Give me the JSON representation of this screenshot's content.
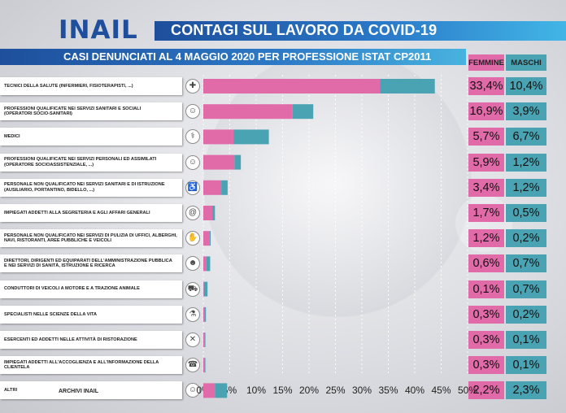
{
  "header": {
    "logo": "INAIL",
    "title": "CONTAGI SUL LAVORO DA COVID-19",
    "subtitle": "CASI DENUNCIATI AL 4 MAGGIO 2020 PER PROFESSIONE ISTAT CP2011",
    "col_female": "FEMMINE",
    "col_male": "MASCHI"
  },
  "footer": "ARCHIVI INAIL",
  "colors": {
    "female": "#e16aa9",
    "male": "#4aa3b2",
    "brand_blue": "#1f4f9c"
  },
  "rows": [
    {
      "label": "TECNICI DELLA SALUTE (INFERMIERI, FISIOTERAPISTI, ...)",
      "female_label": "33,4%",
      "male_label": "10,4%",
      "icon": "nurse-icon",
      "glyph": "✚"
    },
    {
      "label": "PROFESSIONI QUALIFICATE NEI SERVIZI SANITARI E SOCIALI\n(OPERATORI SOCIO-SANITARI)",
      "female_label": "16,9%",
      "male_label": "3,9%",
      "icon": "caregiver-icon",
      "glyph": "☺"
    },
    {
      "label": "MEDICI",
      "female_label": "5,7%",
      "male_label": "6,7%",
      "icon": "doctor-icon",
      "glyph": "⚕"
    },
    {
      "label": "PROFESSIONI QUALIFICATE NEI SERVIZI PERSONALI ED ASSIMILATI\n(OPERATORE SOCIOASSISTENZIALE, ...)",
      "female_label": "5,9%",
      "male_label": "1,2%",
      "icon": "assistant-icon",
      "glyph": "☺"
    },
    {
      "label": "PERSONALE NON QUALIFICATO NEI SERVIZI  SANITARI E DI ISTRUZIONE\n(AUSILIARIO, PORTANTINO, BIDELLO, ...)",
      "female_label": "3,4%",
      "male_label": "1,2%",
      "icon": "orderly-icon",
      "glyph": "♿"
    },
    {
      "label": "IMPIEGATI ADDETTI ALLA SEGRETERIA E AGLI AFFARI GENERALI",
      "female_label": "1,7%",
      "male_label": "0,5%",
      "icon": "clerk-icon",
      "glyph": "@"
    },
    {
      "label": "PERSONALE NON QUALIFICATO NEI SERVIZI DI PULIZIA DI UFFICI, ALBERGHI,\nNAVI, RISTORANTI, AREE PUBBLICHE E VEICOLI",
      "female_label": "1,2%",
      "male_label": "0,2%",
      "icon": "cleaning-icon",
      "glyph": "✋"
    },
    {
      "label": "DIRETTORI, DIRIGENTI ED EQUIPARATI DELL'AMMINISTRAZIONE PUBBLICA\nE NEI SERVIZI DI SANITÀ, ISTRUZIONE E RICERCA",
      "female_label": "0,6%",
      "male_label": "0,7%",
      "icon": "manager-icon",
      "glyph": "☻"
    },
    {
      "label": "CONDUTTORI DI VEICOLI A MOTORE E A TRAZIONE ANIMALE",
      "female_label": "0,1%",
      "male_label": "0,7%",
      "icon": "truck-icon",
      "glyph": "⛟"
    },
    {
      "label": "SPECIALISTI NELLE SCIENZE DELLA VITA",
      "female_label": "0,3%",
      "male_label": "0,2%",
      "icon": "scientist-icon",
      "glyph": "⚗"
    },
    {
      "label": "ESERCENTI ED ADDETTI NELLE ATTIVITÀ DI RISTORAZIONE",
      "female_label": "0,3%",
      "male_label": "0,1%",
      "icon": "cutlery-icon",
      "glyph": "✕"
    },
    {
      "label": "IMPIEGATI ADDETTI ALL'ACCOGLIENZA E ALL'INFORMAZIONE DELLA CLIENTELA",
      "female_label": "0,3%",
      "male_label": "0,1%",
      "icon": "receptionist-icon",
      "glyph": "☎"
    },
    {
      "label": "ALTRI",
      "female_label": "2,2%",
      "male_label": "2,3%",
      "icon": "person-icon",
      "glyph": "☺"
    }
  ],
  "chart_data": {
    "type": "bar",
    "orientation": "horizontal",
    "stacked": true,
    "categories": [
      "TECNICI DELLA SALUTE (INFERMIERI, FISIOTERAPISTI, ...)",
      "PROFESSIONI QUALIFICATE NEI SERVIZI SANITARI E SOCIALI (OPERATORI SOCIO-SANITARI)",
      "MEDICI",
      "PROFESSIONI QUALIFICATE NEI SERVIZI PERSONALI ED ASSIMILATI (OPERATORE SOCIOASSISTENZIALE, ...)",
      "PERSONALE NON QUALIFICATO NEI SERVIZI  SANITARI E DI ISTRUZIONE (AUSILIARIO, PORTANTINO, BIDELLO, ...)",
      "IMPIEGATI ADDETTI ALLA SEGRETERIA E AGLI AFFARI GENERALI",
      "PERSONALE NON QUALIFICATO NEI SERVIZI DI PULIZIA DI UFFICI, ALBERGHI, NAVI, RISTORANTI, AREE PUBBLICHE E VEICOLI",
      "DIRETTORI, DIRIGENTI ED EQUIPARATI DELL'AMMINISTRAZIONE PUBBLICA E NEI SERVIZI DI SANITÀ, ISTRUZIONE E RICERCA",
      "CONDUTTORI DI VEICOLI A MOTORE E A TRAZIONE ANIMALE",
      "SPECIALISTI NELLE SCIENZE DELLA VITA",
      "ESERCENTI ED ADDETTI NELLE ATTIVITÀ DI RISTORAZIONE",
      "IMPIEGATI ADDETTI ALL'ACCOGLIENZA E ALL'INFORMAZIONE DELLA CLIENTELA",
      "ALTRI"
    ],
    "series": [
      {
        "name": "FEMMINE",
        "values": [
          33.4,
          16.9,
          5.7,
          5.9,
          3.4,
          1.7,
          1.2,
          0.6,
          0.1,
          0.3,
          0.3,
          0.3,
          2.2
        ]
      },
      {
        "name": "MASCHI",
        "values": [
          10.4,
          3.9,
          6.7,
          1.2,
          1.2,
          0.5,
          0.2,
          0.7,
          0.7,
          0.2,
          0.1,
          0.1,
          2.3
        ]
      }
    ],
    "xlim": [
      0,
      50
    ],
    "xticks": [
      "0%",
      "5%",
      "10%",
      "15%",
      "20%",
      "25%",
      "30%",
      "35%",
      "40%",
      "45%",
      "50%"
    ],
    "grid": true,
    "legend": "top-right"
  }
}
